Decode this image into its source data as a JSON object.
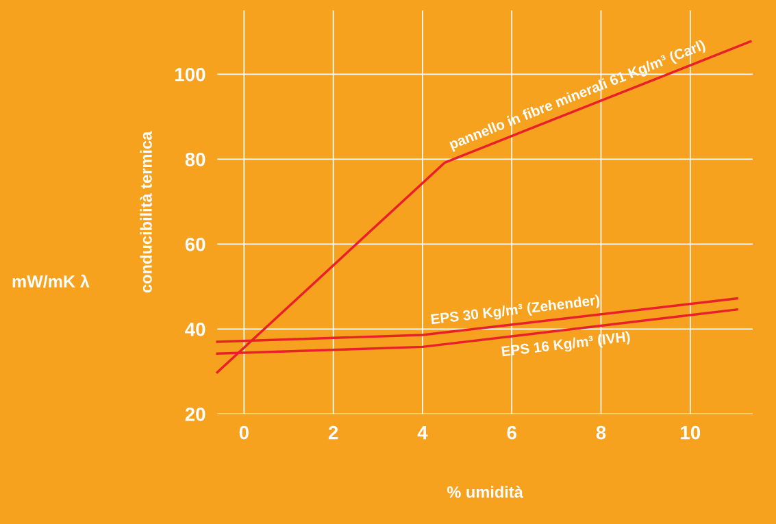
{
  "chart_data": {
    "type": "line",
    "xlabel": "% umidità",
    "ylabel": "conducibilità termica",
    "annotations": [
      "mW/mK λ"
    ],
    "series": [
      {
        "name": "pannello in fibre minerali 61 Kg/m³ (Carl)",
        "color": "#e8202a",
        "x": [
          -0.6,
          4.5,
          11.35
        ],
        "values": [
          29.8,
          79.2,
          107.7
        ]
      },
      {
        "name": "EPS 30 Kg/m³ (Zehender)",
        "color": "#e8202a",
        "x": [
          -0.6,
          4,
          11.05
        ],
        "values": [
          37,
          38.6,
          47.2
        ]
      },
      {
        "name": "EPS 16 Kg/m³ (IVH)",
        "color": "#e8202a",
        "x": [
          -0.6,
          4,
          11.05
        ],
        "values": [
          34.2,
          35.8,
          44.6
        ]
      }
    ],
    "xlim": [
      -0.6,
      11.4
    ],
    "ylim": [
      20,
      115
    ],
    "xticks": [
      0,
      2,
      4,
      6,
      8,
      10
    ],
    "yticks": [
      20,
      40,
      60,
      80,
      100
    ],
    "grid": true,
    "legend": false,
    "marker": "none",
    "line_style": "solid"
  }
}
